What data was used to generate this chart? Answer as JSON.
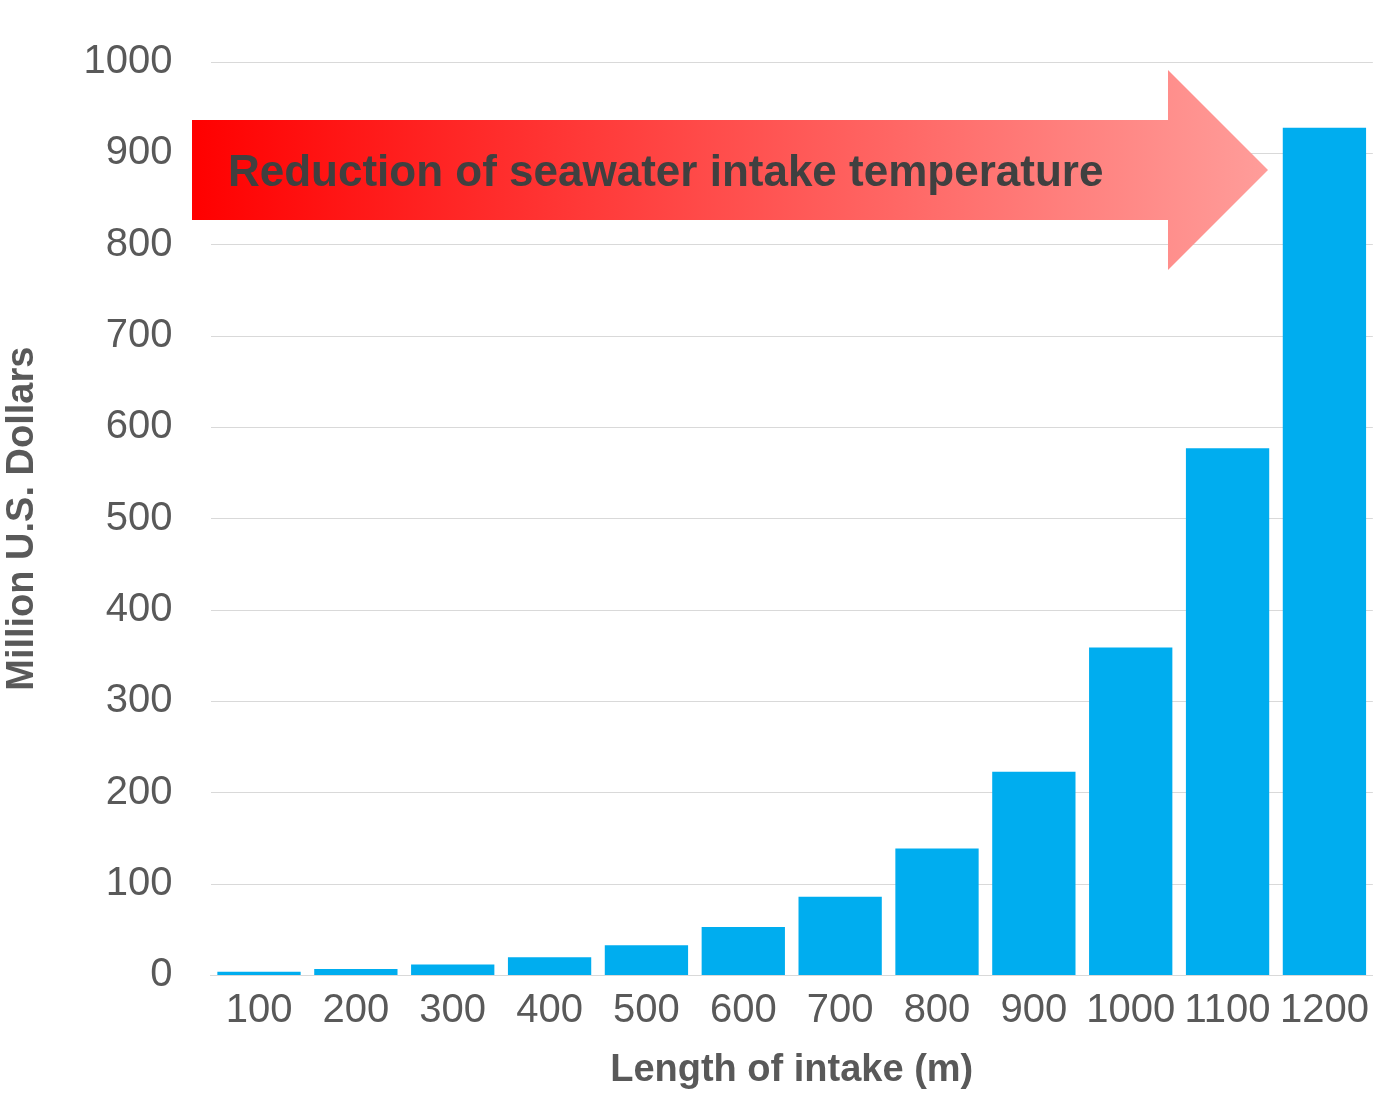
{
  "chart_data": {
    "type": "bar",
    "xlabel": "Length of intake (m)",
    "ylabel": "Million U.S. Dollars",
    "categories": [
      "100",
      "200",
      "300",
      "400",
      "500",
      "600",
      "700",
      "800",
      "900",
      "1000",
      "1100",
      "1200"
    ],
    "values": [
      4,
      7,
      12,
      20,
      33,
      53,
      86,
      139,
      223,
      359,
      577,
      928
    ],
    "color": "#00adef",
    "ylim": [
      0,
      1000
    ],
    "yticks": [
      0,
      100,
      200,
      300,
      400,
      500,
      600,
      700,
      800,
      900,
      1000
    ],
    "grid": "y",
    "annotations": [
      "Reduction of seawater intake temperature"
    ]
  }
}
